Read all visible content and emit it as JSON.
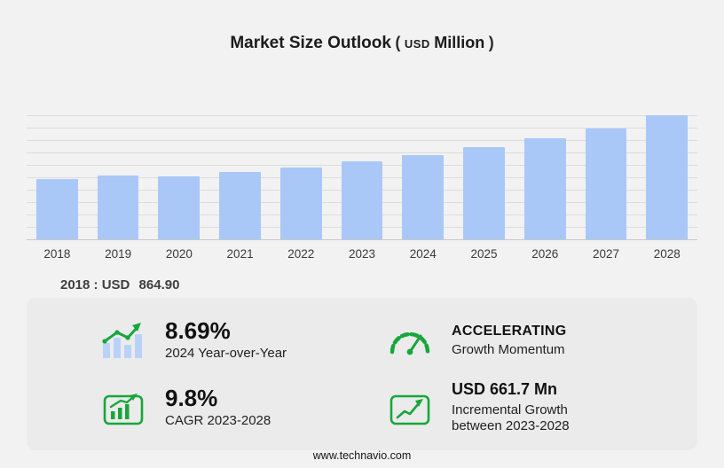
{
  "title": {
    "main": "Market Size Outlook",
    "open_paren": "(",
    "currency": "USD",
    "unit": "Million",
    "close_paren": ")"
  },
  "chart_data": {
    "type": "bar",
    "title": "Market Size Outlook (USD Million)",
    "categories": [
      "2018",
      "2019",
      "2020",
      "2021",
      "2022",
      "2023",
      "2024",
      "2025",
      "2026",
      "2027",
      "2028"
    ],
    "values": [
      864.9,
      910,
      895,
      960,
      1030,
      1110.4,
      1207,
      1318,
      1443,
      1587,
      1772.1
    ],
    "xlabel": "",
    "ylabel": "USD Million",
    "ylim": [
      0,
      1900
    ],
    "grid": true,
    "legend": "none",
    "bar_color": "#a9c8f8",
    "notes": "2018 labeled value is 864.90; later values estimated from bar heights, 8.69% YoY in 2024, 9.8% CAGR and +661.7 Mn between 2023-2028"
  },
  "annotation": {
    "label": "2018 : USD",
    "value": "864.90"
  },
  "stats": [
    {
      "icon": "bar-growth-icon",
      "value": "8.69%",
      "caption": "2024 Year-over-Year"
    },
    {
      "icon": "speedometer-icon",
      "value": "ACCELERATING",
      "caption": "Growth Momentum"
    },
    {
      "icon": "cagr-chart-icon",
      "value": "9.8%",
      "caption": "CAGR 2023-2028"
    },
    {
      "icon": "incremental-growth-icon",
      "value": "USD 661.7 Mn",
      "caption": "Incremental Growth between 2023-2028"
    }
  ],
  "footer": {
    "url": "www.technavio.com"
  },
  "colors": {
    "bar": "#a9c8f8",
    "green": "#17a63b",
    "panel": "#ebebeb",
    "background": "#f2f2f2"
  }
}
